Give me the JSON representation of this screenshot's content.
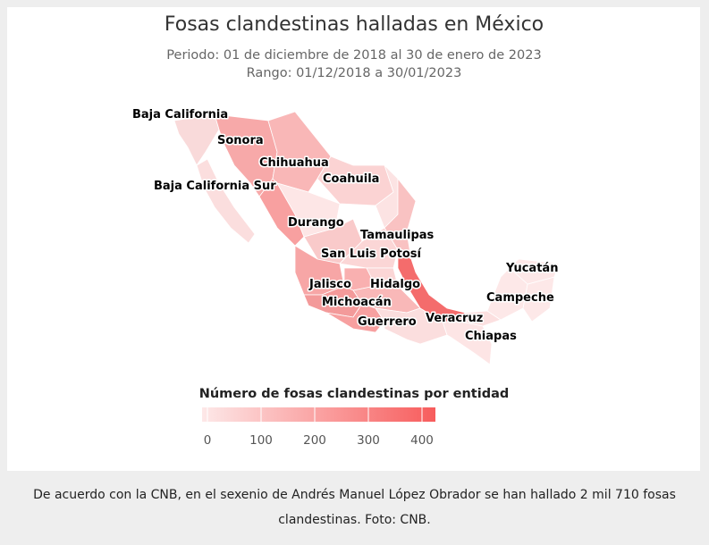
{
  "header": {
    "title": "Fosas clandestinas halladas en México",
    "subtitle": [
      "Periodo: 01 de diciembre de 2018 al 30 de enero de 2023",
      "Rango: 01/12/2018 a 30/01/2023"
    ]
  },
  "map": {
    "states": [
      {
        "name": "Baja California",
        "color": "#f9dada"
      },
      {
        "name": "Sonora",
        "color": "#f7a9a9"
      },
      {
        "name": "Chihuahua",
        "color": "#f9b7b7"
      },
      {
        "name": "Coahuila",
        "color": "#fbd3d3"
      },
      {
        "name": "Baja California Sur",
        "color": "#fbdede"
      },
      {
        "name": "Durango",
        "color": "#fde6e6"
      },
      {
        "name": "Tamaulipas",
        "color": "#f9c2c2"
      },
      {
        "name": "San Luis Potosí",
        "color": "#fbd6d6"
      },
      {
        "name": "Jalisco",
        "color": "#f7a6a6"
      },
      {
        "name": "Hidalgo",
        "color": "#fbd6d6"
      },
      {
        "name": "Michoacán",
        "color": "#f39a9a"
      },
      {
        "name": "Guerrero",
        "color": "#f7a0a0"
      },
      {
        "name": "Veracruz",
        "color": "#f46c6c"
      },
      {
        "name": "Chiapas",
        "color": "#fde5e5"
      },
      {
        "name": "Yucatán",
        "color": "#fde8e8"
      },
      {
        "name": "Campeche",
        "color": "#fde8e8"
      }
    ],
    "legend": {
      "title": "Número de fosas clandestinas por entidad",
      "ticks": [
        0,
        100,
        200,
        300,
        400
      ],
      "colors": [
        "#fde8e8",
        "#f75c5c"
      ]
    }
  },
  "caption": "De acuerdo con la CNB, en el sexenio de Andrés Manuel López Obrador se han hallado 2 mil 710 fosas clandestinas. Foto: CNB."
}
